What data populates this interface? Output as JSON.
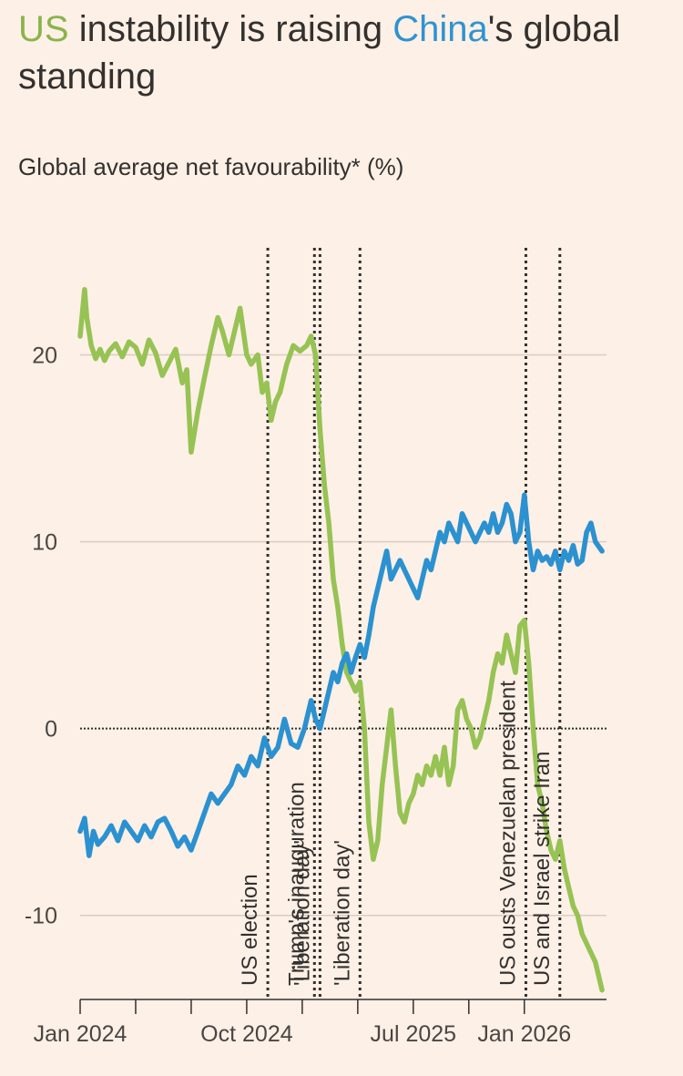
{
  "title": {
    "us": "US",
    "middle": " instability is raising ",
    "china": "China",
    "end": "'s global standing"
  },
  "subtitle": "Global average net favourability* (%)",
  "colors": {
    "us": "#97c254",
    "china": "#2b91d0",
    "text": "#33302e",
    "background": "#fdf0e6"
  },
  "chart_data": {
    "type": "line",
    "title": "US instability is raising China's global standing",
    "ylabel": "Global average net favourability* (%)",
    "ylim": [
      -14.5,
      27
    ],
    "xlim": [
      2024.0,
      2026.37
    ],
    "yticks": [
      -10,
      0,
      10,
      20
    ],
    "ytick_labels": [
      "-10",
      "0",
      "10",
      "20"
    ],
    "xticks": [
      2024.0,
      2024.75,
      2025.5,
      2026.0
    ],
    "xtick_labels": [
      "Jan 2024",
      "Oct 2024",
      "Jul 2025",
      "Jan 2026"
    ],
    "minor_xticks": [
      2024.25,
      2024.5,
      2025.0,
      2025.25,
      2025.75
    ],
    "events": [
      {
        "x": 2024.845,
        "label": "US election"
      },
      {
        "x": 2025.055,
        "label": "Trump's inauguration"
      },
      {
        "x": 2025.08,
        "label": "'Liberation day'"
      },
      {
        "x": 2025.26,
        "label": "'Liberation day'"
      },
      {
        "x": 2026.007,
        "label": "US ousts Venezuelan president"
      },
      {
        "x": 2026.16,
        "label": "US and Israel strike Iran"
      }
    ],
    "series": [
      {
        "name": "US",
        "color": "#97c254",
        "x": [
          2024.0,
          2024.02,
          2024.03,
          2024.05,
          2024.07,
          2024.09,
          2024.11,
          2024.13,
          2024.16,
          2024.19,
          2024.22,
          2024.25,
          2024.28,
          2024.31,
          2024.34,
          2024.37,
          2024.4,
          2024.43,
          2024.46,
          2024.48,
          2024.5,
          2024.53,
          2024.56,
          2024.59,
          2024.62,
          2024.64,
          2024.67,
          2024.7,
          2024.72,
          2024.75,
          2024.77,
          2024.8,
          2024.82,
          2024.84,
          2024.86,
          2024.88,
          2024.9,
          2024.93,
          2024.96,
          2024.99,
          2025.02,
          2025.04,
          2025.06,
          2025.08,
          2025.1,
          2025.12,
          2025.14,
          2025.16,
          2025.18,
          2025.2,
          2025.22,
          2025.24,
          2025.26,
          2025.28,
          2025.3,
          2025.32,
          2025.34,
          2025.36,
          2025.38,
          2025.4,
          2025.42,
          2025.44,
          2025.46,
          2025.48,
          2025.5,
          2025.52,
          2025.54,
          2025.56,
          2025.58,
          2025.6,
          2025.62,
          2025.64,
          2025.66,
          2025.68,
          2025.7,
          2025.72,
          2025.74,
          2025.76,
          2025.78,
          2025.8,
          2025.82,
          2025.84,
          2025.86,
          2025.88,
          2025.9,
          2025.92,
          2025.94,
          2025.96,
          2025.98,
          2026.0,
          2026.02,
          2026.04,
          2026.06,
          2026.08,
          2026.1,
          2026.12,
          2026.14,
          2026.16,
          2026.18,
          2026.2,
          2026.22,
          2026.24,
          2026.26,
          2026.28,
          2026.3,
          2026.32,
          2026.35
        ],
        "values": [
          21.0,
          23.5,
          22.0,
          20.5,
          19.8,
          20.3,
          19.7,
          20.2,
          20.6,
          19.9,
          20.7,
          20.4,
          19.5,
          20.8,
          20.1,
          18.9,
          19.6,
          20.3,
          18.5,
          19.2,
          14.8,
          17.0,
          18.8,
          20.5,
          22.0,
          21.3,
          20.0,
          21.5,
          22.5,
          20.0,
          19.5,
          20.0,
          18.0,
          18.5,
          16.5,
          17.5,
          18.0,
          19.5,
          20.5,
          20.2,
          20.5,
          21.0,
          20.0,
          16.0,
          13.0,
          11.0,
          8.0,
          6.5,
          4.5,
          3.0,
          2.5,
          2.0,
          2.5,
          0.0,
          -5.0,
          -7.0,
          -6.0,
          -3.0,
          -1.0,
          1.0,
          -2.0,
          -4.5,
          -5.0,
          -4.0,
          -3.5,
          -2.5,
          -3.0,
          -2.0,
          -2.5,
          -1.5,
          -2.5,
          -1.0,
          -3.0,
          -2.0,
          1.0,
          1.5,
          0.5,
          0.0,
          -1.0,
          -0.5,
          0.5,
          1.5,
          3.0,
          4.0,
          3.5,
          5.0,
          4.0,
          3.0,
          5.5,
          5.8,
          3.5,
          0.0,
          -3.0,
          -4.0,
          -5.5,
          -6.5,
          -7.0,
          -6.0,
          -7.5,
          -8.5,
          -9.5,
          -10.0,
          -11.0,
          -11.5,
          -12.0,
          -12.5,
          -14.0
        ]
      },
      {
        "name": "China",
        "color": "#2b91d0",
        "x": [
          2024.0,
          2024.02,
          2024.04,
          2024.06,
          2024.08,
          2024.11,
          2024.14,
          2024.17,
          2024.2,
          2024.23,
          2024.26,
          2024.29,
          2024.32,
          2024.35,
          2024.38,
          2024.41,
          2024.44,
          2024.47,
          2024.5,
          2024.53,
          2024.56,
          2024.59,
          2024.62,
          2024.65,
          2024.68,
          2024.71,
          2024.74,
          2024.77,
          2024.8,
          2024.83,
          2024.86,
          2024.89,
          2024.92,
          2024.95,
          2024.98,
          2025.01,
          2025.04,
          2025.06,
          2025.08,
          2025.1,
          2025.12,
          2025.14,
          2025.16,
          2025.18,
          2025.2,
          2025.22,
          2025.24,
          2025.26,
          2025.28,
          2025.3,
          2025.32,
          2025.34,
          2025.36,
          2025.38,
          2025.4,
          2025.42,
          2025.44,
          2025.46,
          2025.48,
          2025.5,
          2025.52,
          2025.54,
          2025.56,
          2025.58,
          2025.6,
          2025.62,
          2025.64,
          2025.66,
          2025.68,
          2025.7,
          2025.72,
          2025.74,
          2025.76,
          2025.78,
          2025.8,
          2025.82,
          2025.84,
          2025.86,
          2025.88,
          2025.9,
          2025.92,
          2025.94,
          2025.96,
          2025.98,
          2026.0,
          2026.02,
          2026.04,
          2026.06,
          2026.08,
          2026.1,
          2026.12,
          2026.14,
          2026.16,
          2026.18,
          2026.2,
          2026.22,
          2026.24,
          2026.26,
          2026.28,
          2026.3,
          2026.32,
          2026.35
        ],
        "values": [
          -5.5,
          -4.8,
          -6.8,
          -5.5,
          -6.2,
          -5.8,
          -5.2,
          -6.0,
          -5.0,
          -5.5,
          -6.0,
          -5.2,
          -5.8,
          -5.0,
          -4.8,
          -5.5,
          -6.3,
          -5.8,
          -6.5,
          -5.5,
          -4.5,
          -3.5,
          -4.0,
          -3.5,
          -3.0,
          -2.0,
          -2.5,
          -1.5,
          -2.0,
          -0.5,
          -1.5,
          -1.0,
          0.5,
          -0.8,
          -1.0,
          0.0,
          1.5,
          0.5,
          0.0,
          1.0,
          2.0,
          3.0,
          2.5,
          3.5,
          4.0,
          3.0,
          3.8,
          4.5,
          3.8,
          5.0,
          6.5,
          7.5,
          8.5,
          9.5,
          8.0,
          8.5,
          9.0,
          8.5,
          8.0,
          7.5,
          7.0,
          8.0,
          9.0,
          8.5,
          9.5,
          10.5,
          10.0,
          11.0,
          10.5,
          10.0,
          11.5,
          11.0,
          10.5,
          10.0,
          10.5,
          11.0,
          10.5,
          11.5,
          10.5,
          11.0,
          12.0,
          11.5,
          10.0,
          10.5,
          12.5,
          10.0,
          8.5,
          9.5,
          9.0,
          9.2,
          8.8,
          9.5,
          8.5,
          9.5,
          9.0,
          9.8,
          8.8,
          9.0,
          10.5,
          11.0,
          10.0,
          9.5
        ]
      }
    ]
  }
}
